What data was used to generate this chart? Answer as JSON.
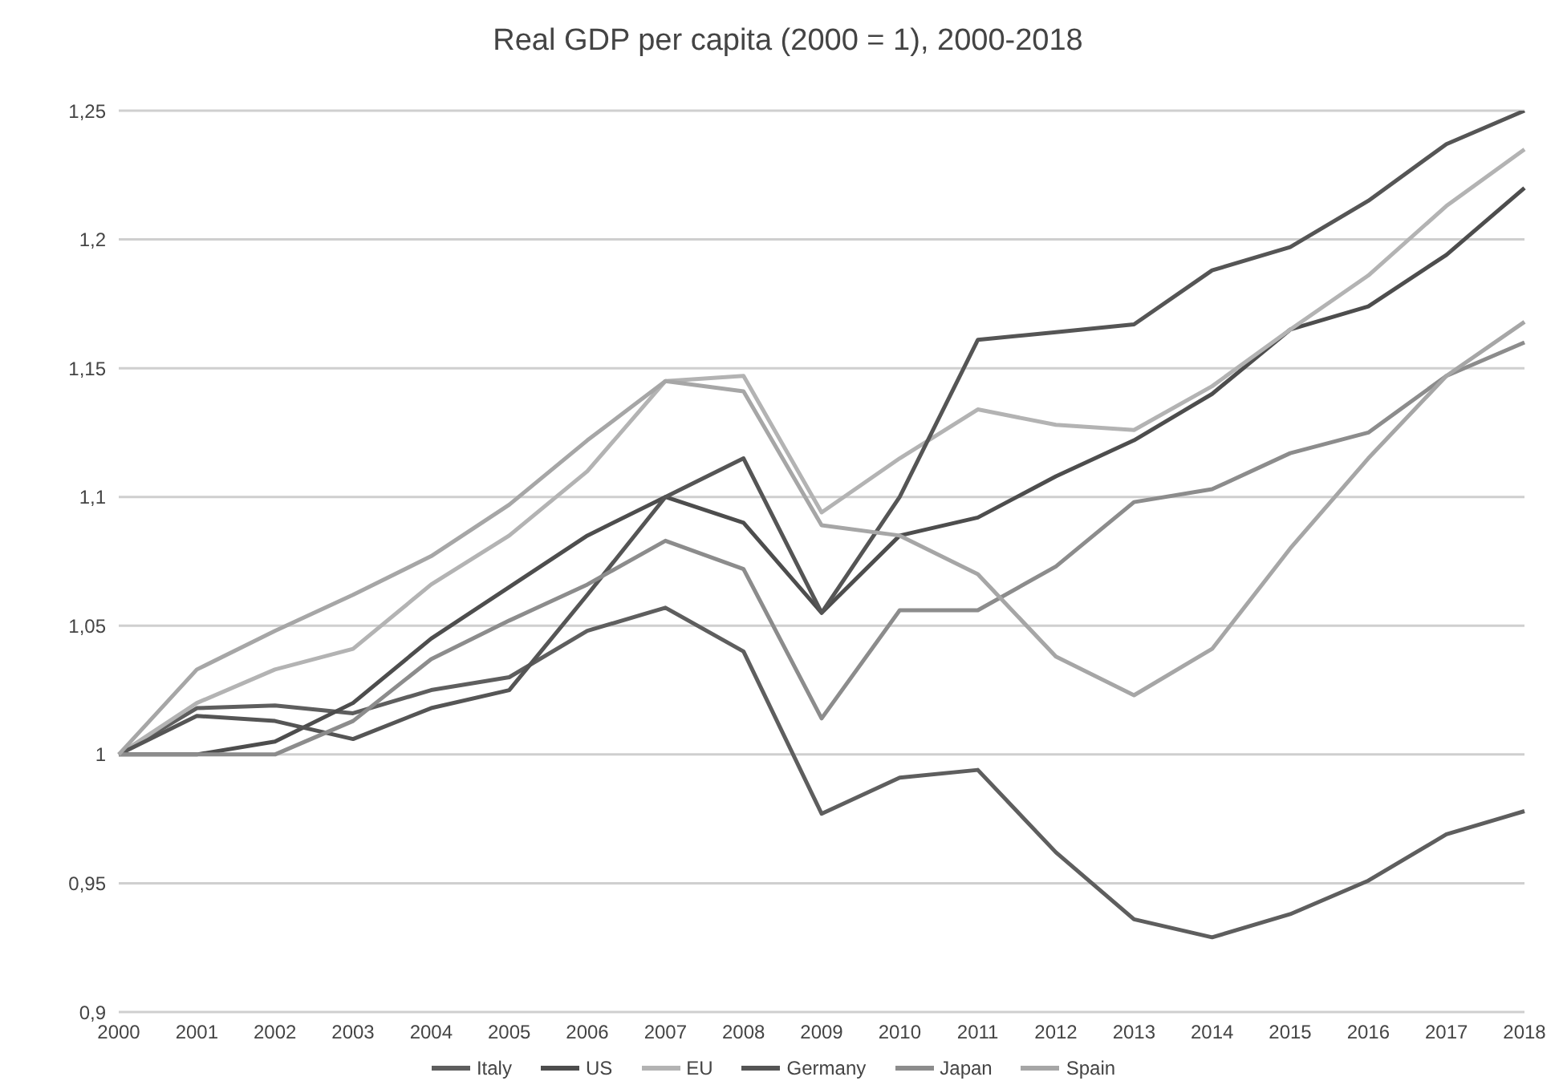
{
  "chart_data": {
    "type": "line",
    "title": "Real GDP per capita (2000 = 1), 2000-2018",
    "categories": [
      "2000",
      "2001",
      "2002",
      "2003",
      "2004",
      "2005",
      "2006",
      "2007",
      "2008",
      "2009",
      "2010",
      "2011",
      "2012",
      "2013",
      "2014",
      "2015",
      "2016",
      "2017",
      "2018"
    ],
    "series": [
      {
        "name": "Italy",
        "color": "#5e5e5e",
        "values": [
          1,
          1.018,
          1.019,
          1.016,
          1.025,
          1.03,
          1.048,
          1.057,
          1.04,
          0.977,
          0.991,
          0.994,
          0.962,
          0.936,
          0.929,
          0.938,
          0.951,
          0.969,
          0.978
        ]
      },
      {
        "name": "US",
        "color": "#4d4d4d",
        "values": [
          1,
          1,
          1.005,
          1.02,
          1.045,
          1.065,
          1.085,
          1.1,
          1.09,
          1.055,
          1.085,
          1.092,
          1.108,
          1.122,
          1.14,
          1.165,
          1.174,
          1.194,
          1.22
        ]
      },
      {
        "name": "EU",
        "color": "#b3b3b3",
        "values": [
          1,
          1.02,
          1.033,
          1.041,
          1.066,
          1.085,
          1.11,
          1.145,
          1.147,
          1.094,
          1.115,
          1.134,
          1.128,
          1.126,
          1.143,
          1.165,
          1.186,
          1.213,
          1.235
        ]
      },
      {
        "name": "Germany",
        "color": "#555555",
        "values": [
          1,
          1.015,
          1.013,
          1.006,
          1.018,
          1.025,
          1.062,
          1.1,
          1.115,
          1.055,
          1.1,
          1.161,
          1.164,
          1.167,
          1.188,
          1.197,
          1.215,
          1.237,
          1.25
        ]
      },
      {
        "name": "Japan",
        "color": "#8c8c8c",
        "values": [
          1,
          1,
          1,
          1.013,
          1.037,
          1.052,
          1.066,
          1.083,
          1.072,
          1.014,
          1.056,
          1.056,
          1.073,
          1.098,
          1.103,
          1.117,
          1.125,
          1.147,
          1.16
        ]
      },
      {
        "name": "Spain",
        "color": "#a6a6a6",
        "values": [
          1,
          1.033,
          1.048,
          1.062,
          1.077,
          1.097,
          1.122,
          1.145,
          1.141,
          1.089,
          1.085,
          1.07,
          1.038,
          1.023,
          1.041,
          1.08,
          1.115,
          1.147,
          1.168
        ]
      }
    ],
    "ylim": [
      0.9,
      1.25
    ],
    "yticks": [
      {
        "value": 0.9,
        "label": "0,9"
      },
      {
        "value": 0.95,
        "label": "0,95"
      },
      1,
      {
        "value": 1.05,
        "label": "1,05"
      },
      {
        "value": 1.1,
        "label": "1,1"
      },
      {
        "value": 1.15,
        "label": "1,15"
      },
      {
        "value": 1.2,
        "label": "1,2"
      },
      {
        "value": 1.25,
        "label": "1,25"
      }
    ],
    "grid": "y",
    "legend": "bottom",
    "marker": "none",
    "line_style": "solid"
  }
}
